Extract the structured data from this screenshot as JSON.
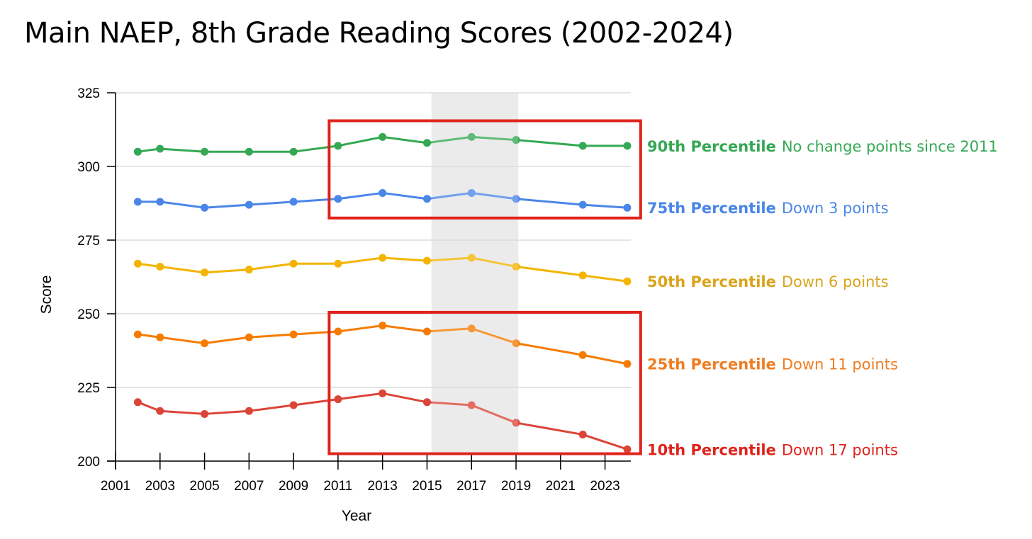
{
  "chart_data": {
    "type": "line",
    "title": "Main NAEP, 8th Grade Reading Scores (2002-2024)",
    "xlabel": "Year",
    "ylabel": "Score",
    "xlim": [
      2001,
      2024
    ],
    "ylim": [
      200,
      325
    ],
    "x_ticks": [
      "2001",
      "2003",
      "2005",
      "2007",
      "2009",
      "2011",
      "2013",
      "2015",
      "2017",
      "2019",
      "2021",
      "2023"
    ],
    "y_ticks": [
      "200",
      "225",
      "250",
      "275",
      "300",
      "325"
    ],
    "grid": "horizontal",
    "x": [
      2002,
      2003,
      2005,
      2007,
      2009,
      2011,
      2013,
      2015,
      2017,
      2019,
      2022,
      2024
    ],
    "series": [
      {
        "name": "90th Percentile",
        "note": "No change points since 2011",
        "color": "#34a853",
        "values": [
          305,
          306,
          305,
          305,
          305,
          307,
          310,
          308,
          310,
          309,
          307,
          307
        ]
      },
      {
        "name": "75th Percentile",
        "note": "Down 3 points",
        "color": "#4a86e8",
        "values": [
          288,
          288,
          286,
          287,
          288,
          289,
          291,
          289,
          291,
          289,
          287,
          286
        ]
      },
      {
        "name": "50th Percentile",
        "note": "Down 6 points",
        "color": "#f4b400",
        "label_color": "#d9a41c",
        "values": [
          267,
          266,
          264,
          265,
          267,
          267,
          269,
          268,
          269,
          266,
          263,
          261
        ]
      },
      {
        "name": "25th Percentile",
        "note": "Down 11 points",
        "color": "#f57c00",
        "label_color": "#ef7d22",
        "values": [
          243,
          242,
          240,
          242,
          243,
          244,
          246,
          244,
          245,
          240,
          236,
          233
        ]
      },
      {
        "name": "10th Percentile",
        "note": "Down 17 points",
        "color": "#db4437",
        "label_color": "#e0231b",
        "values": [
          220,
          217,
          216,
          217,
          219,
          221,
          223,
          220,
          219,
          213,
          209,
          204
        ]
      }
    ],
    "shaded_region": {
      "x": [
        2015.2,
        2019.1
      ],
      "color": "#e6e6e6"
    },
    "highlight_boxes": [
      {
        "x": [
          2010.6,
          2024.6
        ],
        "y": [
          282.5,
          315.5
        ],
        "color": "#e0231b"
      },
      {
        "x": [
          2010.6,
          2024.6
        ],
        "y": [
          202.5,
          250.5
        ],
        "color": "#e0231b"
      }
    ]
  }
}
